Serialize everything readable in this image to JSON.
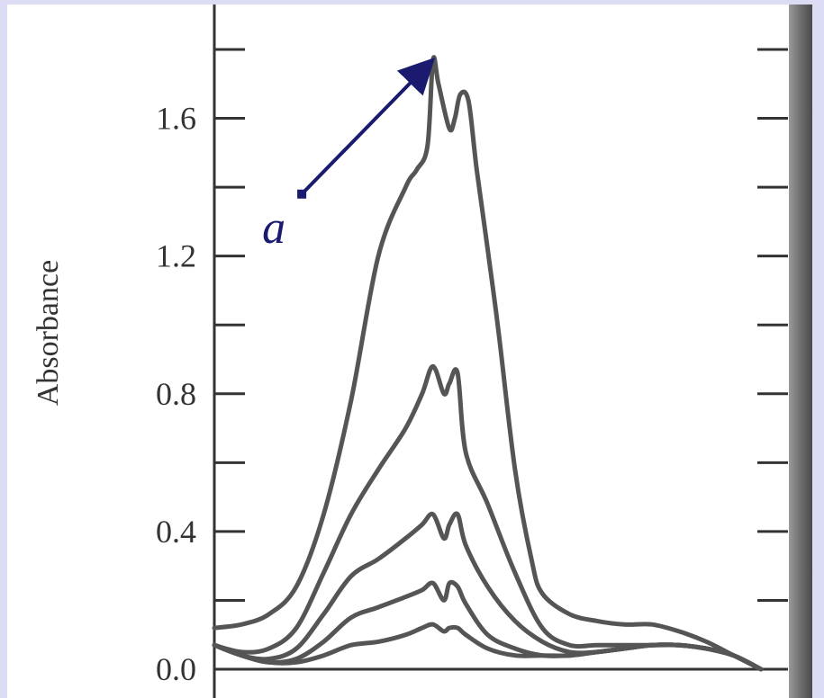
{
  "chart_data": {
    "type": "line",
    "title": "",
    "xlabel": "",
    "ylabel": "Absorbance",
    "ylim": [
      0,
      1.8
    ],
    "xlim": [
      0,
      1
    ],
    "yticks": [
      {
        "value": 0.0,
        "label": "0.0"
      },
      {
        "value": 0.4,
        "label": "0.4"
      },
      {
        "value": 0.8,
        "label": "0.8"
      },
      {
        "value": 1.2,
        "label": "1.2"
      },
      {
        "value": 1.6,
        "label": "1.6"
      }
    ],
    "minor_yticks": [
      0.2,
      0.6,
      1.0,
      1.4,
      1.8
    ],
    "grid": false,
    "legend": "none",
    "annotation": {
      "text": "a",
      "target_x": 0.4,
      "target_y": 1.77,
      "from_x": 0.16,
      "from_y": 1.38,
      "color": "#1a1a6e"
    },
    "series": [
      {
        "x": [
          0,
          0.05,
          0.1,
          0.15,
          0.2,
          0.25,
          0.3,
          0.35,
          0.37,
          0.39,
          0.4,
          0.41,
          0.43,
          0.44,
          0.45,
          0.465,
          0.48,
          0.5,
          0.52,
          0.55,
          0.58,
          0.6,
          0.65,
          0.7,
          0.75,
          0.8,
          0.85,
          0.9,
          0.95,
          1.0
        ],
        "values": [
          0.12,
          0.13,
          0.16,
          0.24,
          0.45,
          0.78,
          1.2,
          1.4,
          1.45,
          1.52,
          1.77,
          1.7,
          1.57,
          1.6,
          1.67,
          1.65,
          1.45,
          1.22,
          0.98,
          0.58,
          0.32,
          0.22,
          0.16,
          0.14,
          0.13,
          0.13,
          0.11,
          0.08,
          0.04,
          0.0
        ]
      },
      {
        "x": [
          0,
          0.05,
          0.1,
          0.15,
          0.2,
          0.25,
          0.3,
          0.35,
          0.38,
          0.4,
          0.42,
          0.43,
          0.445,
          0.46,
          0.5,
          0.55,
          0.6,
          0.65,
          0.7,
          0.75,
          0.8,
          0.85,
          0.9,
          0.95,
          1.0
        ],
        "values": [
          0.07,
          0.05,
          0.06,
          0.12,
          0.28,
          0.45,
          0.58,
          0.7,
          0.8,
          0.88,
          0.8,
          0.83,
          0.86,
          0.63,
          0.48,
          0.28,
          0.12,
          0.07,
          0.07,
          0.07,
          0.07,
          0.07,
          0.06,
          0.04,
          0.0
        ]
      },
      {
        "x": [
          0,
          0.05,
          0.1,
          0.15,
          0.2,
          0.25,
          0.3,
          0.35,
          0.38,
          0.4,
          0.42,
          0.43,
          0.445,
          0.46,
          0.5,
          0.55,
          0.6,
          0.65,
          0.7,
          0.75,
          0.8,
          0.85,
          0.9,
          0.95,
          1.0
        ],
        "values": [
          0.07,
          0.04,
          0.03,
          0.06,
          0.16,
          0.27,
          0.32,
          0.38,
          0.42,
          0.45,
          0.38,
          0.42,
          0.45,
          0.36,
          0.24,
          0.14,
          0.08,
          0.05,
          0.05,
          0.06,
          0.07,
          0.07,
          0.06,
          0.04,
          0.0
        ]
      },
      {
        "x": [
          0,
          0.05,
          0.1,
          0.15,
          0.2,
          0.25,
          0.3,
          0.35,
          0.38,
          0.4,
          0.42,
          0.43,
          0.445,
          0.46,
          0.5,
          0.55,
          0.6,
          0.65,
          0.7,
          0.75,
          0.8,
          0.85,
          0.9,
          0.95,
          1.0
        ],
        "values": [
          0.07,
          0.04,
          0.02,
          0.03,
          0.08,
          0.15,
          0.18,
          0.21,
          0.23,
          0.25,
          0.2,
          0.25,
          0.24,
          0.19,
          0.1,
          0.06,
          0.04,
          0.04,
          0.05,
          0.06,
          0.07,
          0.07,
          0.06,
          0.04,
          0.0
        ]
      },
      {
        "x": [
          0,
          0.05,
          0.1,
          0.15,
          0.2,
          0.25,
          0.3,
          0.35,
          0.38,
          0.4,
          0.42,
          0.43,
          0.445,
          0.46,
          0.5,
          0.55,
          0.6,
          0.65,
          0.7,
          0.75,
          0.8,
          0.85,
          0.9,
          0.95,
          1.0
        ],
        "values": [
          0.07,
          0.04,
          0.02,
          0.02,
          0.04,
          0.07,
          0.08,
          0.1,
          0.12,
          0.13,
          0.11,
          0.12,
          0.12,
          0.1,
          0.06,
          0.04,
          0.04,
          0.04,
          0.05,
          0.06,
          0.07,
          0.07,
          0.06,
          0.04,
          0.0
        ]
      }
    ],
    "colors": {
      "curve": "#555555",
      "axis": "#333333",
      "annotation": "#1a1a6e",
      "frame_bg": "#dcdcf5",
      "plot_bg": "#ffffff"
    }
  }
}
